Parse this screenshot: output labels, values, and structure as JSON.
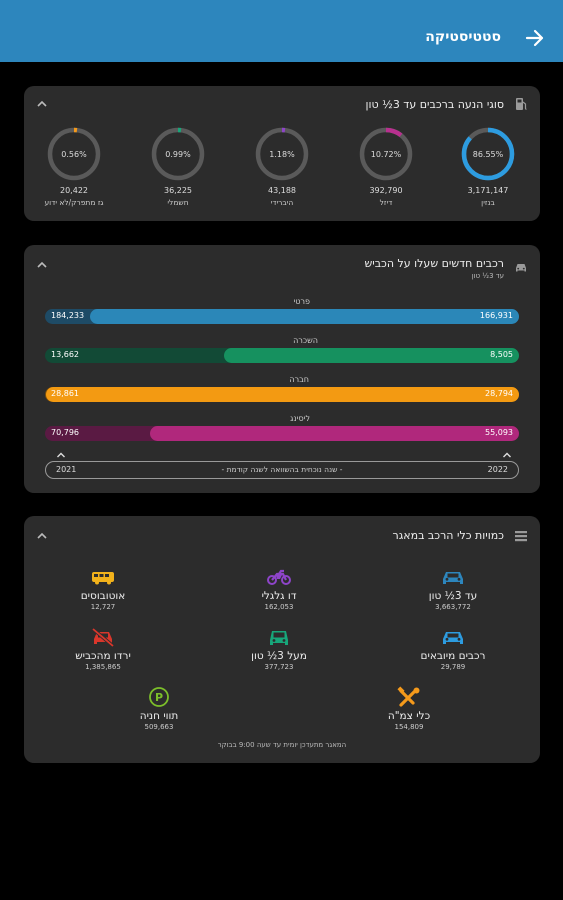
{
  "appbar": {
    "title": "סטטיסטיקה",
    "color": "#2d86bd"
  },
  "propulsion": {
    "title": "סוגי הנעה ברכבים עד 3½ טון",
    "items": [
      {
        "pct": "86.55%",
        "fraction": 0.8655,
        "value": "3,171,147",
        "label": "בנזין",
        "color": "#2d9ce0"
      },
      {
        "pct": "10.72%",
        "fraction": 0.1072,
        "value": "392,790",
        "label": "דיזל",
        "color": "#b8308f"
      },
      {
        "pct": "1.18%",
        "fraction": 0.0118,
        "value": "43,188",
        "label": "היברידי",
        "color": "#8e44c9"
      },
      {
        "pct": "0.99%",
        "fraction": 0.0099,
        "value": "36,225",
        "label": "חשמלי",
        "color": "#17a67a"
      },
      {
        "pct": "0.56%",
        "fraction": 0.0056,
        "value": "20,422",
        "label": "גז מתפרק/לא ידוע",
        "color": "#f59a1b"
      }
    ]
  },
  "new_vehicles": {
    "title": "רכבים חדשים שעלו על הכביש",
    "subtitle": "עד 3½ טון",
    "rows": [
      {
        "label": "פרטי",
        "prev": "184,233",
        "curr": "166,931",
        "fraction": 0.906,
        "color": "#2b87b8",
        "track": "#1e4b66"
      },
      {
        "label": "השכרה",
        "prev": "13,662",
        "curr": "8,505",
        "fraction": 0.623,
        "color": "#16915f",
        "track": "#124a36"
      },
      {
        "label": "חברה",
        "prev": "28,861",
        "curr": "28,794",
        "fraction": 0.998,
        "color": "#f39a12",
        "track": "#7a4f0b"
      },
      {
        "label": "ליסינג",
        "prev": "70,796",
        "curr": "55,093",
        "fraction": 0.778,
        "color": "#b0287c",
        "track": "#5a1a43"
      }
    ],
    "year_prev": "2021",
    "year_curr": "2022",
    "compare_text": "- שנה נוכחית בהשוואה לשנה קודמת -"
  },
  "quantities": {
    "title": "כמויות כלי הרכב במאגר",
    "items": [
      {
        "name": "עד 3½ טון",
        "value": "3,663,772",
        "icon": "car-icon",
        "color": "#2d86bd"
      },
      {
        "name": "דו גלגלי",
        "value": "162,053",
        "icon": "motorcycle-icon",
        "color": "#8e44c9"
      },
      {
        "name": "אוטובוסים",
        "value": "12,727",
        "icon": "bus-icon",
        "color": "#f2b21b"
      },
      {
        "name": "רכבים מיובאים",
        "value": "29,789",
        "icon": "imported-car-icon",
        "color": "#2d9ce0"
      },
      {
        "name": "מעל 3½ טון",
        "value": "377,723",
        "icon": "truck-icon",
        "color": "#17a67a"
      },
      {
        "name": "ירדו מהכביש",
        "value": "1,385,865",
        "icon": "crossed-car-icon",
        "color": "#d9362b"
      },
      {
        "name": "כלי צמ\"ה",
        "value": "154,809",
        "icon": "tools-icon",
        "color": "#f59a1b"
      },
      {
        "name": "תווי חניה",
        "value": "509,663",
        "icon": "parking-icon",
        "color": "#7cbf2a"
      }
    ],
    "footnote": "המאגר מתעדכן יומית עד שעה 9:00 בבוקר"
  }
}
